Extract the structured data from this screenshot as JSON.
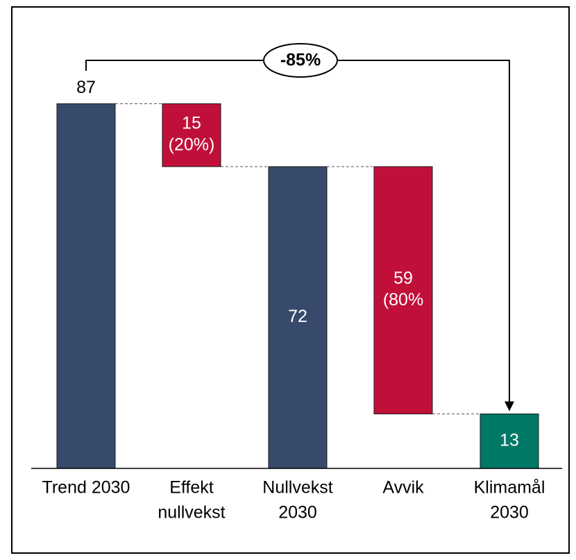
{
  "chart_data": {
    "type": "bar",
    "subtype": "waterfall",
    "title": "",
    "xlabel": "",
    "ylabel": "",
    "ylim": [
      0,
      95
    ],
    "grid": false,
    "legend": "none",
    "categories": [
      "Trend 2030",
      "Effekt nullvekst",
      "Nullvekst 2030",
      "Avvik",
      "Klimamål 2030"
    ],
    "category_lines": [
      [
        "Trend 2030"
      ],
      [
        "Effekt",
        "nullvekst"
      ],
      [
        "Nullvekst",
        "2030"
      ],
      [
        "Avvik"
      ],
      [
        "Klimamål",
        "2030"
      ]
    ],
    "bars": [
      {
        "category": "Trend 2030",
        "kind": "total",
        "start": 0,
        "end": 87,
        "label": "87",
        "label_position": "above",
        "color": "#374a6b"
      },
      {
        "category": "Effekt nullvekst",
        "kind": "decrease",
        "start": 72,
        "end": 87,
        "label": "15",
        "label2": "(20%)",
        "label_position": "inside",
        "color": "#c0103a"
      },
      {
        "category": "Nullvekst 2030",
        "kind": "total",
        "start": 0,
        "end": 72,
        "label": "72",
        "label_position": "inside",
        "color": "#374a6b"
      },
      {
        "category": "Avvik",
        "kind": "decrease",
        "start": 13,
        "end": 72,
        "label": "59",
        "label2": "(80%",
        "label_position": "inside",
        "color": "#c0103a"
      },
      {
        "category": "Klimamål 2030",
        "kind": "total",
        "start": 0,
        "end": 13,
        "label": "13",
        "label_position": "inside",
        "color": "#007866"
      }
    ],
    "annotation": {
      "text": "-85%",
      "from": "Trend 2030",
      "to": "Klimamål 2030"
    }
  },
  "colors": {
    "total": "#374a6b",
    "decrease": "#c0103a",
    "target": "#007866",
    "inside_text": "#ffffff",
    "outside_text": "#000000"
  }
}
